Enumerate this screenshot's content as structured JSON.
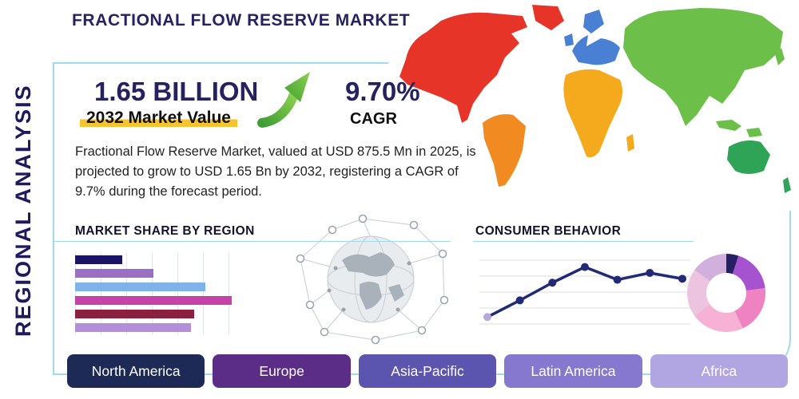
{
  "page": {
    "title": "FRACTIONAL FLOW RESERVE MARKET",
    "side_label": "REGIONAL ANALYSIS",
    "accent_line_color": "#9fdcee"
  },
  "stats": {
    "value": "1.65 BILLION",
    "value_caption": "2032 Market Value",
    "cagr": "9.70%",
    "cagr_caption": "CAGR",
    "description": "Fractional Flow Reserve Market, valued at USD 875.5 Mn in 2025, is projected to grow to USD 1.65 Bn by 2032, registering a CAGR of 9.7% during the forecast period."
  },
  "sections": {
    "market_share": "MARKET SHARE BY REGION",
    "consumer_behavior": "CONSUMER BEHAVIOR"
  },
  "colors": {
    "arrow_dark": "#3f9e34",
    "arrow_light": "#8dd14f",
    "highlight_yellow": "#f6c431",
    "navy": "#262262"
  },
  "buttons": [
    {
      "label": "North America",
      "color": "#1d2a56"
    },
    {
      "label": "Europe",
      "color": "#5b2d86"
    },
    {
      "label": "Asia-Pacific",
      "color": "#5c55b0"
    },
    {
      "label": "Latin America",
      "color": "#8678cf"
    },
    {
      "label": "Africa",
      "color": "#b2a6e2"
    }
  ],
  "map_colors": {
    "north_america": "#e63528",
    "greenland": "#e63528",
    "south_america": "#f08a21",
    "europe": "#4a80d4",
    "scandinavia": "#4a80d4",
    "united_kingdom": "#4a80d4",
    "africa": "#f5a91c",
    "madagascar": "#f5a91c",
    "asia": "#6cc04a",
    "japan": "#6cc04a",
    "southeast_asia": "#6cc04a",
    "indonesia": "#6cc04a",
    "australia": "#2fa457",
    "new_zealand": "#2fa457"
  },
  "chart_data": [
    {
      "type": "bar",
      "title": "Market Share by Region",
      "orientation": "horizontal",
      "values": [
        30,
        50,
        83,
        100,
        76,
        74
      ],
      "value_note": "relative bar lengths, bars unlabeled in source",
      "colors": [
        "#1a1464",
        "#9b6fc3",
        "#7fb3e8",
        "#c543a8",
        "#8c1f3f",
        "#b48ed9"
      ],
      "grid": "vertical"
    },
    {
      "type": "line",
      "title": "Consumer Behavior",
      "x": [
        1,
        2,
        3,
        4,
        5,
        6,
        7
      ],
      "values": [
        1.2,
        2.9,
        4.7,
        6.3,
        5.0,
        5.7,
        5.1
      ],
      "ylim": [
        0,
        7
      ],
      "color": "#232a75",
      "first_point_color": "#b7a7e0",
      "grid": "horizontal"
    },
    {
      "type": "pie",
      "title": "Regional Share Donut",
      "values": [
        5,
        18,
        20,
        22,
        20,
        15
      ],
      "colors": [
        "#252063",
        "#a553cf",
        "#ef82c0",
        "#f6b1d4",
        "#ecc4e0",
        "#d2b0de"
      ],
      "donut": true
    }
  ]
}
